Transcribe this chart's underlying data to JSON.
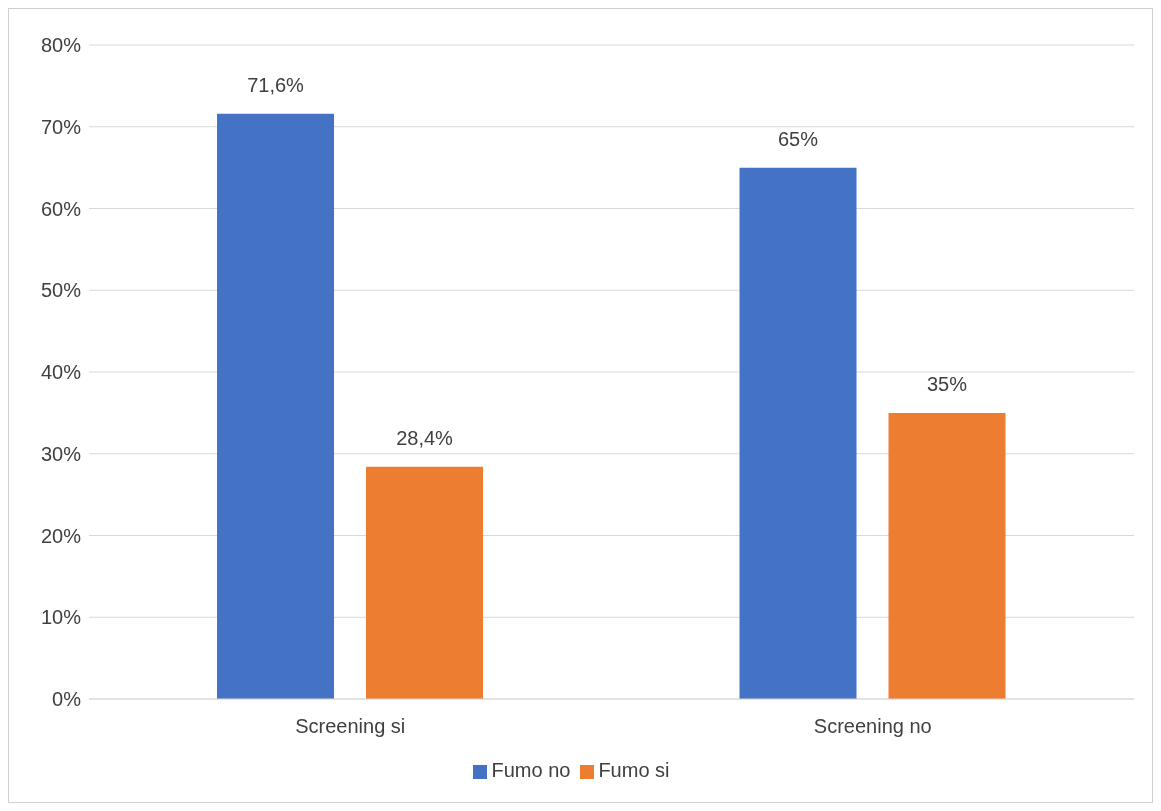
{
  "chart_data": {
    "type": "bar",
    "categories": [
      "Screening si",
      "Screening no"
    ],
    "series": [
      {
        "name": "Fumo no",
        "color": "#4472c4",
        "values": [
          71.6,
          65
        ],
        "value_labels": [
          "71,6%",
          "65%"
        ]
      },
      {
        "name": "Fumo si",
        "color": "#ed7d31",
        "values": [
          28.4,
          35
        ],
        "value_labels": [
          "28,4%",
          "35%"
        ]
      }
    ],
    "ylim": [
      0,
      80
    ],
    "yticks": [
      {
        "value": 0,
        "label": "0%"
      },
      {
        "value": 10,
        "label": "10%"
      },
      {
        "value": 20,
        "label": "20%"
      },
      {
        "value": 30,
        "label": "30%"
      },
      {
        "value": 40,
        "label": "40%"
      },
      {
        "value": 50,
        "label": "50%"
      },
      {
        "value": 60,
        "label": "60%"
      },
      {
        "value": 70,
        "label": "70%"
      },
      {
        "value": 80,
        "label": "80%"
      }
    ],
    "grid": "y",
    "legend": "bottom"
  }
}
